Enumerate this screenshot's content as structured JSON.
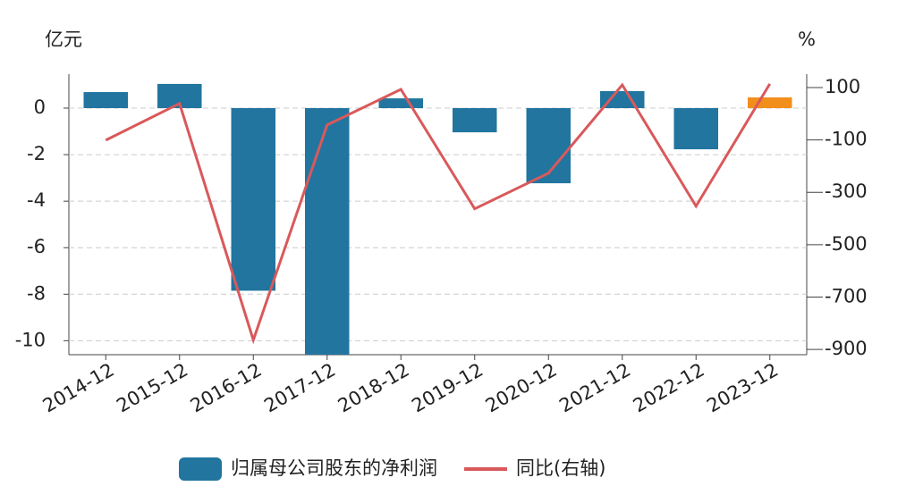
{
  "chart_data": {
    "type": "bar_line",
    "y_label": "亿元",
    "y2_label": "%",
    "categories": [
      "2014-12",
      "2015-12",
      "2016-12",
      "2017-12",
      "2018-12",
      "2019-12",
      "2020-12",
      "2021-12",
      "2022-12",
      "2023-12"
    ],
    "series": [
      {
        "name": "归属母公司股东的净利润",
        "type": "bar",
        "color": "#21759f",
        "colors": [
          "#21759f",
          "#21759f",
          "#21759f",
          "#21759f",
          "#21759f",
          "#21759f",
          "#21759f",
          "#21759f",
          "#21759f",
          "#f28e1c"
        ],
        "values": [
          0.69,
          1.04,
          -7.85,
          -10.8,
          0.42,
          -1.04,
          -3.23,
          0.73,
          -1.77,
          0.46
        ]
      },
      {
        "name": "同比(右轴)",
        "type": "line",
        "axis": "y2",
        "color": "#d9595b",
        "values": [
          -101,
          39,
          -864,
          -43,
          93,
          -363,
          -227,
          110,
          -353,
          114
        ]
      }
    ],
    "ylim": [
      -10.6,
      1.46
    ],
    "yticks": [
      0,
      -2,
      -4,
      -6,
      -8,
      -10
    ],
    "y2lim": [
      -920,
      151
    ],
    "y2ticks": [
      100,
      -100,
      -300,
      -500,
      -700,
      -900
    ],
    "grid": true
  }
}
